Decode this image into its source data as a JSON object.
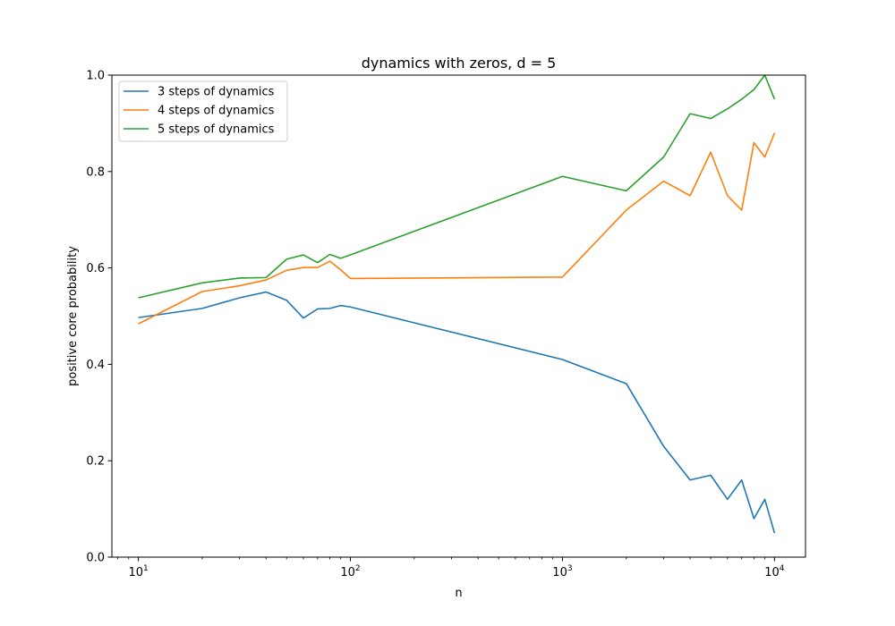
{
  "chart_data": {
    "type": "line",
    "title": "dynamics with zeros, d = 5",
    "xlabel": "n",
    "ylabel": "positive core probability",
    "xscale": "log",
    "xlim": [
      7.5,
      14000
    ],
    "ylim": [
      0,
      1.0
    ],
    "grid": false,
    "legend_position": "top-left",
    "x_ticks": [
      {
        "value": 10,
        "base": "10",
        "exp": "1"
      },
      {
        "value": 100,
        "base": "10",
        "exp": "2"
      },
      {
        "value": 1000,
        "base": "10",
        "exp": "3"
      },
      {
        "value": 10000,
        "base": "10",
        "exp": "4"
      }
    ],
    "y_ticks": [
      {
        "value": 0.0,
        "label": "0.0"
      },
      {
        "value": 0.2,
        "label": "0.2"
      },
      {
        "value": 0.4,
        "label": "0.4"
      },
      {
        "value": 0.6,
        "label": "0.6"
      },
      {
        "value": 0.8,
        "label": "0.8"
      },
      {
        "value": 1.0,
        "label": "1.0"
      }
    ],
    "x": [
      10,
      20,
      30,
      40,
      50,
      60,
      70,
      80,
      90,
      100,
      1000,
      2000,
      3000,
      4000,
      5000,
      6000,
      7000,
      8000,
      9000,
      10000
    ],
    "series": [
      {
        "name": "3 steps of dynamics",
        "color": "#1f77b4",
        "values": [
          0.497,
          0.516,
          0.538,
          0.55,
          0.533,
          0.496,
          0.515,
          0.516,
          0.522,
          0.519,
          0.41,
          0.36,
          0.23,
          0.16,
          0.17,
          0.12,
          0.16,
          0.08,
          0.12,
          0.05
        ]
      },
      {
        "name": "4 steps of dynamics",
        "color": "#ff7f0e",
        "values": [
          0.484,
          0.551,
          0.563,
          0.575,
          0.595,
          0.601,
          0.601,
          0.614,
          0.596,
          0.578,
          0.581,
          0.72,
          0.78,
          0.75,
          0.84,
          0.75,
          0.72,
          0.86,
          0.83,
          0.88
        ]
      },
      {
        "name": "5 steps of dynamics",
        "color": "#2ca02c",
        "values": [
          0.538,
          0.569,
          0.579,
          0.58,
          0.618,
          0.627,
          0.611,
          0.628,
          0.62,
          0.627,
          0.79,
          0.76,
          0.83,
          0.92,
          0.91,
          0.93,
          0.95,
          0.97,
          1.0,
          0.95
        ]
      }
    ]
  }
}
